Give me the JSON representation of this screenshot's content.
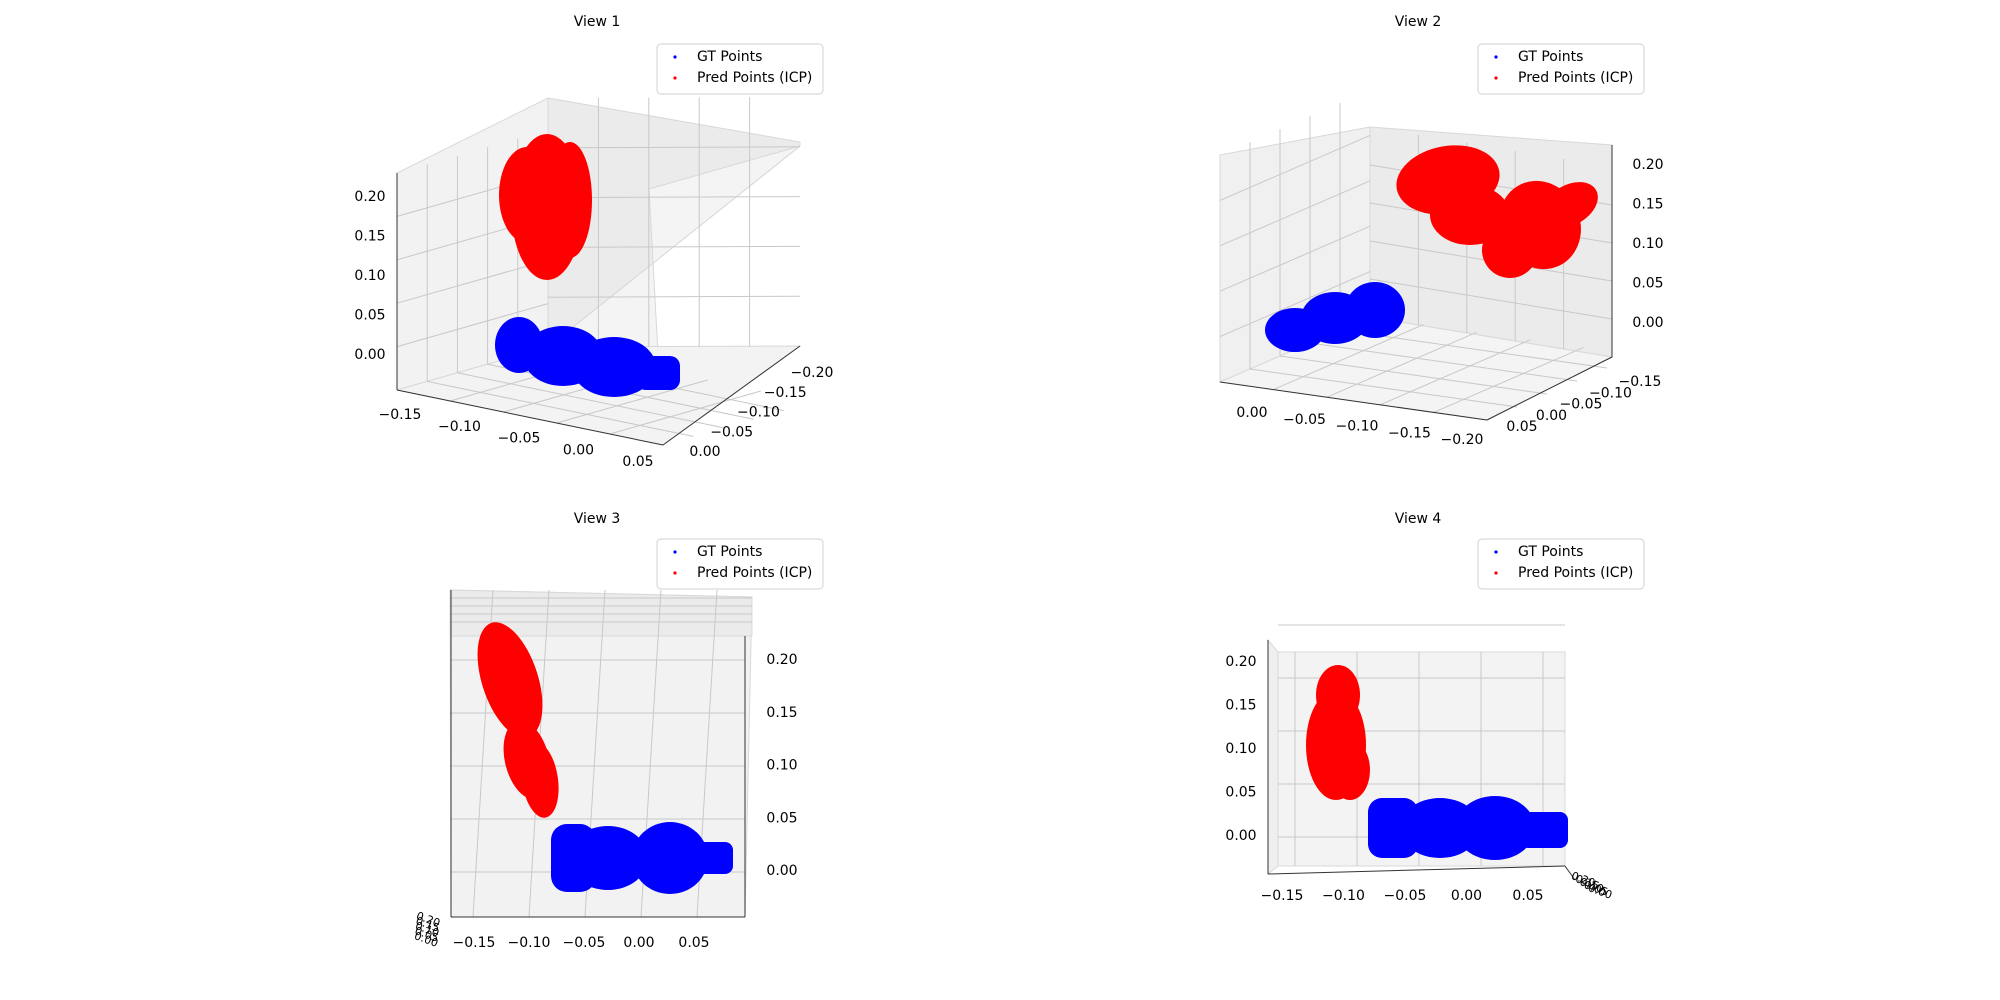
{
  "figure": {
    "background": "#ffffff"
  },
  "legend": {
    "gt_label": "GT Points",
    "pred_label": "Pred Points (ICP)",
    "gt_color": "#0000ff",
    "pred_color": "#ff0000"
  },
  "chart_data": [
    {
      "type": "scatter",
      "title": "View 1",
      "projection": "3d",
      "series": [
        {
          "name": "GT Points",
          "color": "#0000ff"
        },
        {
          "name": "Pred Points (ICP)",
          "color": "#ff0000"
        }
      ],
      "x_ticks": [
        "−0.15",
        "−0.10",
        "−0.05",
        "0.00",
        "0.05"
      ],
      "y_ticks": [
        "−0.20",
        "−0.15",
        "−0.10",
        "−0.05",
        "0.00"
      ],
      "z_ticks": [
        "0.00",
        "0.05",
        "0.10",
        "0.15",
        "0.20"
      ],
      "grid": true,
      "legend_position": "upper right"
    },
    {
      "type": "scatter",
      "title": "View 2",
      "projection": "3d",
      "series": [
        {
          "name": "GT Points",
          "color": "#0000ff"
        },
        {
          "name": "Pred Points (ICP)",
          "color": "#ff0000"
        }
      ],
      "x_ticks": [
        "0.00",
        "−0.05",
        "−0.10",
        "−0.15",
        "−0.20"
      ],
      "y_ticks": [
        "0.05",
        "0.00",
        "−0.05",
        "−0.10",
        "−0.15"
      ],
      "z_ticks": [
        "0.00",
        "0.05",
        "0.10",
        "0.15",
        "0.20"
      ],
      "grid": true,
      "legend_position": "upper right"
    },
    {
      "type": "scatter",
      "title": "View 3",
      "projection": "3d",
      "series": [
        {
          "name": "GT Points",
          "color": "#0000ff"
        },
        {
          "name": "Pred Points (ICP)",
          "color": "#ff0000"
        }
      ],
      "x_ticks": [
        "−0.15",
        "−0.10",
        "−0.05",
        "0.00",
        "0.05"
      ],
      "y_ticks": [
        "0.20",
        "0.15",
        "0.10",
        "0.05",
        "0.00"
      ],
      "z_ticks": [
        "0.00",
        "0.05",
        "0.10",
        "0.15",
        "0.20"
      ],
      "grid": true,
      "legend_position": "upper right"
    },
    {
      "type": "scatter",
      "title": "View 4",
      "projection": "3d",
      "series": [
        {
          "name": "GT Points",
          "color": "#0000ff"
        },
        {
          "name": "Pred Points (ICP)",
          "color": "#ff0000"
        }
      ],
      "x_ticks": [
        "−0.15",
        "−0.10",
        "−0.05",
        "0.00",
        "0.05"
      ],
      "y_ticks": [
        "0.20",
        "0.15",
        "0.10",
        "0.05",
        "0.00"
      ],
      "z_ticks": [
        "0.00",
        "0.05",
        "0.10",
        "0.15",
        "0.20"
      ],
      "grid": true,
      "legend_position": "upper right"
    }
  ]
}
